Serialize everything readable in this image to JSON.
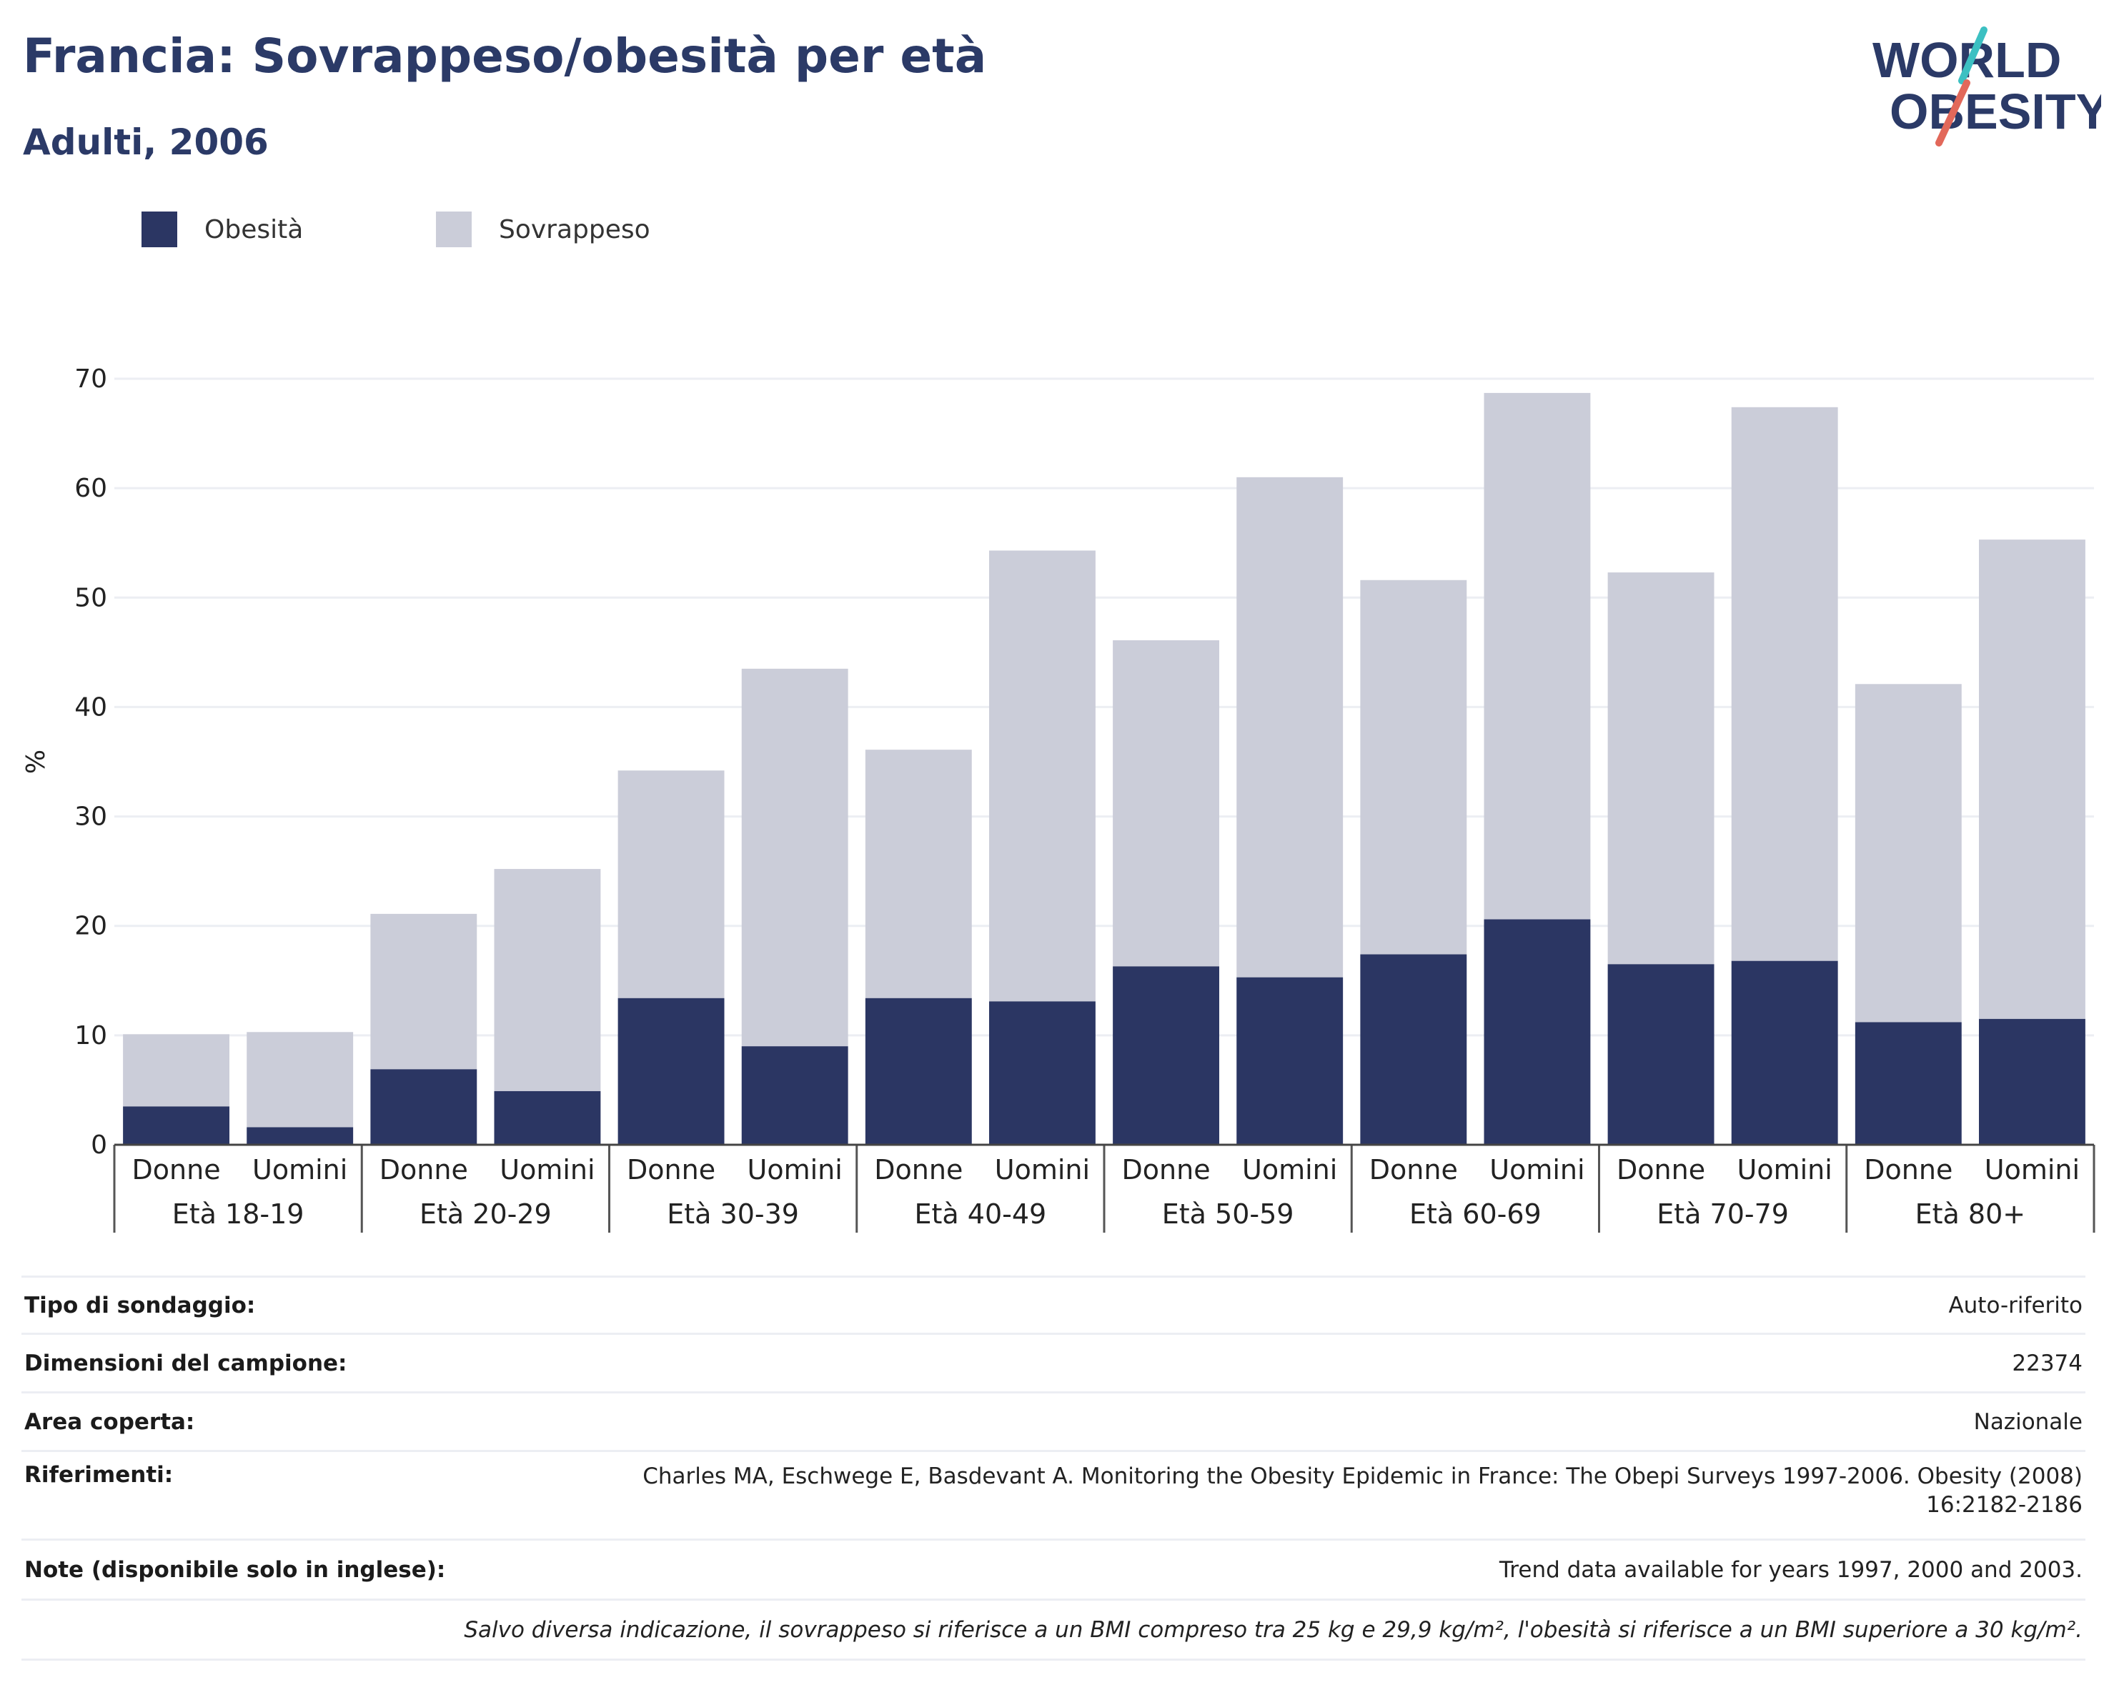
{
  "header": {
    "title": "Francia: Sovrappeso/obesità per età",
    "subtitle": "Adulti, 2006"
  },
  "logo": {
    "line1": "WORLD",
    "line2": "OBESITY",
    "colors": [
      "#2b3a67",
      "#3cc0c2",
      "#e2685a"
    ]
  },
  "legend": [
    {
      "label": "Obesità",
      "color": "#2b3663"
    },
    {
      "label": "Sovrappeso",
      "color": "#cbcdd9"
    }
  ],
  "chart_data": {
    "type": "bar",
    "stacked": true,
    "ylabel": "%",
    "ylim": [
      0,
      70
    ],
    "yticks": [
      0,
      10,
      20,
      30,
      40,
      50,
      60,
      70
    ],
    "grid": true,
    "legend_position": "top-left",
    "groups": [
      "Età 18-19",
      "Età 20-29",
      "Età 30-39",
      "Età 40-49",
      "Età 50-59",
      "Età 60-69",
      "Età 70-79",
      "Età 80+"
    ],
    "subcategories": [
      "Donne",
      "Uomini"
    ],
    "series": [
      {
        "name": "Obesità",
        "color": "#2b3663",
        "values": [
          3.5,
          1.6,
          6.9,
          4.9,
          13.4,
          9.0,
          13.4,
          13.1,
          16.3,
          15.3,
          17.4,
          20.6,
          16.5,
          16.8,
          11.2,
          11.5
        ]
      },
      {
        "name": "Sovrappeso",
        "color": "#cbcdd9",
        "values": [
          6.6,
          8.7,
          14.2,
          20.3,
          20.8,
          34.5,
          22.7,
          41.2,
          29.8,
          45.7,
          34.2,
          48.1,
          35.8,
          50.6,
          30.9,
          43.8
        ]
      }
    ]
  },
  "info": {
    "rows": [
      {
        "label": "Tipo di sondaggio:",
        "value": "Auto-riferito"
      },
      {
        "label": "Dimensioni del campione:",
        "value": "22374"
      },
      {
        "label": "Area coperta:",
        "value": "Nazionale"
      },
      {
        "label": "Riferimenti:",
        "value": "Charles MA, Eschwege E, Basdevant A. Monitoring the Obesity Epidemic in France: The Obepi Surveys 1997-2006. Obesity (2008)",
        "value2": "16:2182-2186"
      },
      {
        "label": "Note (disponibile solo in inglese):",
        "value": "Trend data available for years 1997, 2000 and 2003."
      }
    ],
    "footnote": "Salvo diversa indicazione, il sovrappeso si riferisce a un BMI compreso tra 25 kg e 29,9 kg/m², l'obesità si riferisce a un BMI superiore a 30 kg/m²."
  }
}
